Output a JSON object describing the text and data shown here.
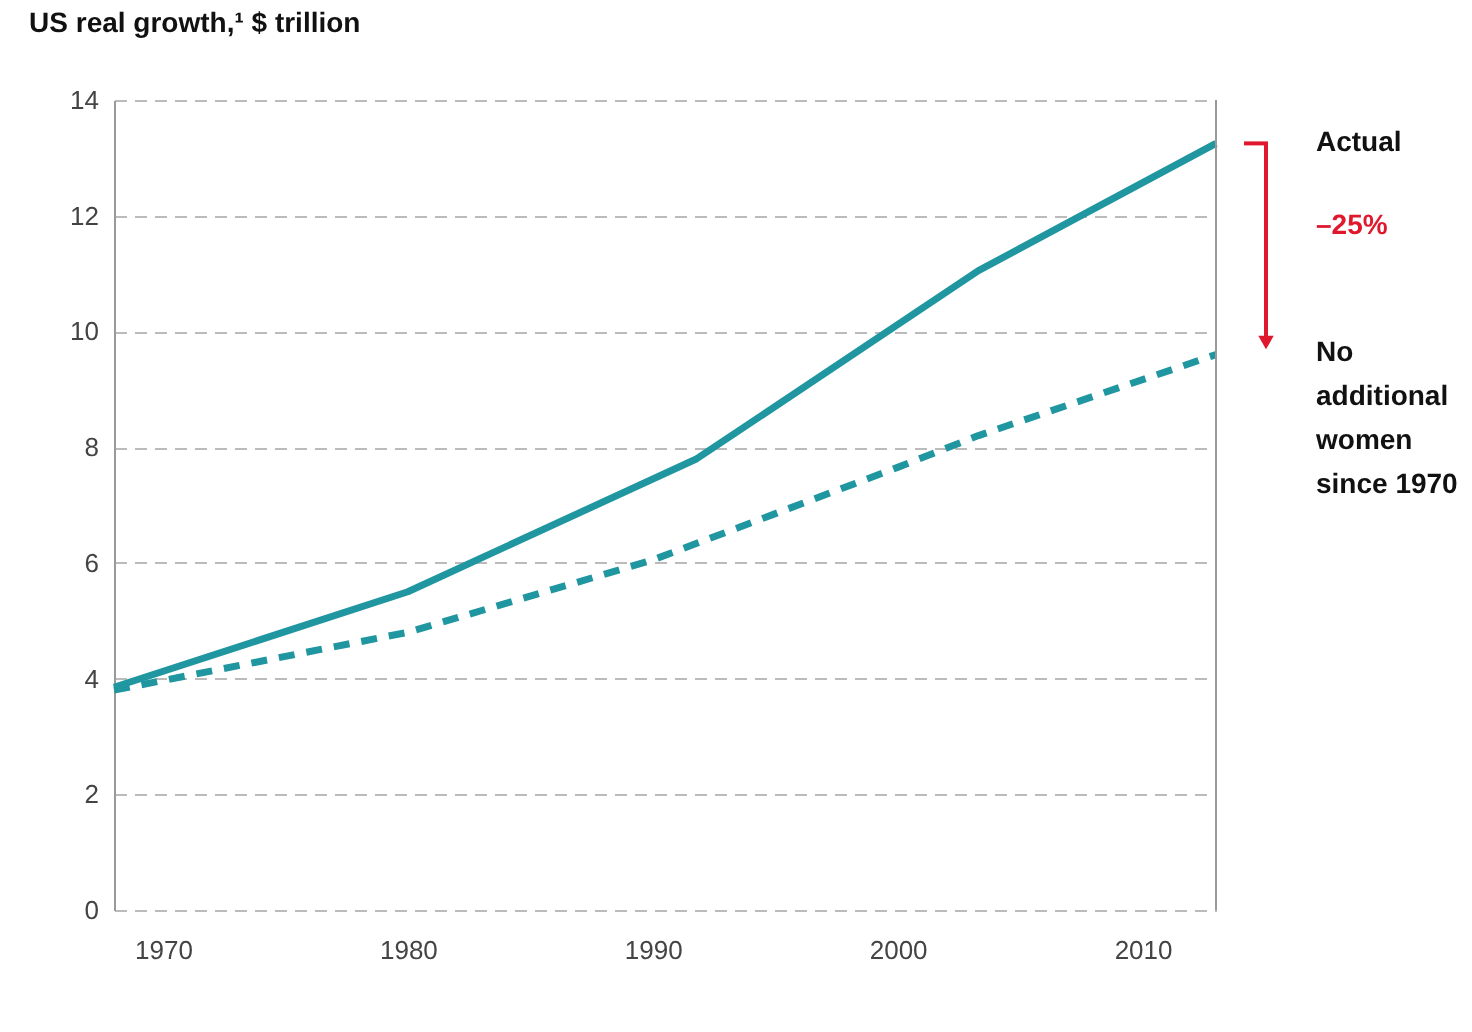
{
  "chart_data": {
    "type": "line",
    "title": "US real growth,¹ $ trillion",
    "xlim": [
      1968,
      2013
    ],
    "xticks": [
      1970,
      1980,
      1990,
      2000,
      2010
    ],
    "ylim": [
      0,
      14
    ],
    "yticks": [
      0,
      2,
      4,
      6,
      8,
      10,
      12,
      14
    ],
    "grid": "y",
    "marker": "none",
    "series": [
      {
        "name": "Actual",
        "color": "#1f96a0",
        "line_style": "solid",
        "x": [
          1968,
          1980,
          1991.8,
          2003.3,
          2013
        ],
        "values": [
          3.85,
          5.5,
          7.8,
          11.05,
          13.25
        ]
      },
      {
        "name": "No additional women since 1970",
        "color": "#1f96a0",
        "line_style": "dashed",
        "x": [
          1968,
          1980,
          1990,
          2000,
          2003.3,
          2013
        ],
        "values": [
          3.8,
          4.8,
          6.05,
          7.65,
          8.2,
          9.6
        ]
      }
    ],
    "annotations": [
      "–25%"
    ]
  }
}
